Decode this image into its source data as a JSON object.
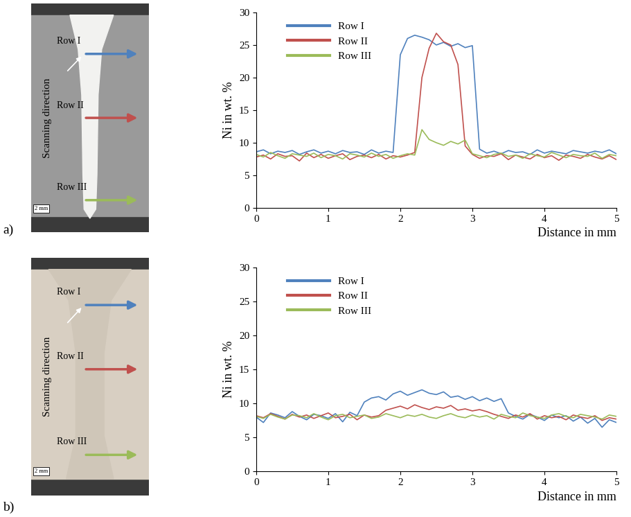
{
  "panel_labels": [
    "a)",
    "b)"
  ],
  "micrographs": [
    {
      "rows": [
        {
          "label": "Row I"
        },
        {
          "label": "Row II"
        },
        {
          "label": "Row III"
        }
      ],
      "annotation": "Scanning direction",
      "scale_bar": "2 mm"
    },
    {
      "rows": [
        {
          "label": "Row I"
        },
        {
          "label": "Row II"
        },
        {
          "label": "Row III"
        }
      ],
      "annotation": "Scanning direction",
      "scale_bar": "2 mm"
    }
  ],
  "chart_data": [
    {
      "type": "line",
      "x_label": "Distance in mm",
      "y_label": "Ni in wt. %",
      "xlim": [
        0,
        5
      ],
      "xticks": [
        0,
        1,
        2,
        3,
        4,
        5
      ],
      "ylim": [
        0,
        30
      ],
      "yticks": [
        0,
        5,
        10,
        15,
        20,
        25,
        30
      ],
      "legend": "upper left",
      "x": [
        0.0,
        0.1,
        0.2,
        0.3,
        0.4,
        0.5,
        0.6,
        0.7,
        0.8,
        0.9,
        1.0,
        1.1,
        1.2,
        1.3,
        1.4,
        1.5,
        1.6,
        1.7,
        1.8,
        1.9,
        2.0,
        2.1,
        2.2,
        2.3,
        2.4,
        2.5,
        2.6,
        2.7,
        2.8,
        2.9,
        3.0,
        3.1,
        3.2,
        3.3,
        3.4,
        3.5,
        3.6,
        3.7,
        3.8,
        3.9,
        4.0,
        4.1,
        4.2,
        4.3,
        4.4,
        4.5,
        4.6,
        4.7,
        4.8,
        4.9,
        5.0
      ],
      "series": [
        {
          "name": "Row I",
          "color": "#4f81bd",
          "values": [
            8.6,
            8.9,
            8.3,
            8.7,
            8.5,
            8.8,
            8.2,
            8.6,
            8.9,
            8.4,
            8.7,
            8.3,
            8.8,
            8.5,
            8.6,
            8.2,
            8.9,
            8.4,
            8.7,
            8.5,
            23.5,
            26.0,
            26.5,
            26.2,
            25.8,
            25.0,
            25.4,
            24.8,
            25.2,
            24.6,
            24.9,
            9.0,
            8.4,
            8.7,
            8.3,
            8.8,
            8.5,
            8.6,
            8.2,
            8.9,
            8.4,
            8.7,
            8.5,
            8.3,
            8.8,
            8.6,
            8.4,
            8.7,
            8.5,
            8.9,
            8.3
          ]
        },
        {
          "name": "Row II",
          "color": "#c0504d",
          "values": [
            7.8,
            8.1,
            7.5,
            8.3,
            7.9,
            8.0,
            7.2,
            8.4,
            7.7,
            8.2,
            7.6,
            8.0,
            8.3,
            7.4,
            7.9,
            8.1,
            7.7,
            8.2,
            7.5,
            8.0,
            7.8,
            8.1,
            8.5,
            20.0,
            24.5,
            26.8,
            25.5,
            25.0,
            22.0,
            9.5,
            8.2,
            7.6,
            8.0,
            7.9,
            8.3,
            7.4,
            8.1,
            7.8,
            7.5,
            8.2,
            7.7,
            8.0,
            7.3,
            8.1,
            7.9,
            7.6,
            8.2,
            7.8,
            7.5,
            8.0,
            7.4
          ]
        },
        {
          "name": "Row III",
          "color": "#9bbb59",
          "values": [
            8.2,
            7.8,
            8.5,
            8.0,
            7.6,
            8.3,
            8.1,
            7.9,
            8.4,
            7.7,
            8.2,
            8.0,
            7.5,
            8.3,
            8.1,
            7.8,
            8.4,
            7.9,
            8.2,
            7.6,
            8.0,
            8.3,
            8.1,
            12.0,
            10.5,
            10.0,
            9.6,
            10.2,
            9.8,
            10.4,
            8.3,
            8.0,
            7.7,
            8.2,
            8.4,
            7.9,
            8.1,
            7.6,
            8.3,
            8.0,
            7.8,
            8.5,
            8.1,
            7.7,
            8.2,
            8.0,
            7.9,
            8.4,
            7.6,
            8.2,
            8.0
          ]
        }
      ]
    },
    {
      "type": "line",
      "x_label": "Distance in mm",
      "y_label": "Ni in wt. %",
      "xlim": [
        0,
        5
      ],
      "xticks": [
        0,
        1,
        2,
        3,
        4,
        5
      ],
      "ylim": [
        0,
        30
      ],
      "yticks": [
        0,
        5,
        10,
        15,
        20,
        25,
        30
      ],
      "legend": "upper left",
      "x": [
        0.0,
        0.1,
        0.2,
        0.3,
        0.4,
        0.5,
        0.6,
        0.7,
        0.8,
        0.9,
        1.0,
        1.1,
        1.2,
        1.3,
        1.4,
        1.5,
        1.6,
        1.7,
        1.8,
        1.9,
        2.0,
        2.1,
        2.2,
        2.3,
        2.4,
        2.5,
        2.6,
        2.7,
        2.8,
        2.9,
        3.0,
        3.1,
        3.2,
        3.3,
        3.4,
        3.5,
        3.6,
        3.7,
        3.8,
        3.9,
        4.0,
        4.1,
        4.2,
        4.3,
        4.4,
        4.5,
        4.6,
        4.7,
        4.8,
        4.9,
        5.0
      ],
      "series": [
        {
          "name": "Row I",
          "color": "#4f81bd",
          "values": [
            8.0,
            7.2,
            8.6,
            8.3,
            7.9,
            8.8,
            8.1,
            7.6,
            8.4,
            8.2,
            7.8,
            8.5,
            7.3,
            8.7,
            8.2,
            10.2,
            10.8,
            11.0,
            10.5,
            11.4,
            11.8,
            11.2,
            11.6,
            12.0,
            11.5,
            11.3,
            11.7,
            10.9,
            11.1,
            10.6,
            11.0,
            10.4,
            10.8,
            10.3,
            10.7,
            8.6,
            8.1,
            7.7,
            8.4,
            8.0,
            7.5,
            8.3,
            7.9,
            8.2,
            7.4,
            8.0,
            7.1,
            7.8,
            6.5,
            7.6,
            7.2
          ]
        },
        {
          "name": "Row II",
          "color": "#c0504d",
          "values": [
            8.2,
            7.9,
            8.5,
            8.1,
            7.7,
            8.4,
            8.0,
            8.3,
            7.8,
            8.2,
            8.6,
            7.9,
            8.1,
            8.4,
            7.6,
            8.3,
            8.0,
            8.2,
            9.0,
            9.3,
            9.6,
            9.2,
            9.8,
            9.4,
            9.1,
            9.5,
            9.3,
            9.7,
            9.0,
            9.2,
            8.9,
            9.1,
            8.8,
            8.4,
            8.1,
            7.8,
            8.3,
            8.0,
            8.5,
            7.7,
            8.2,
            7.9,
            8.1,
            7.6,
            8.3,
            8.0,
            7.8,
            8.2,
            7.5,
            7.9,
            7.7
          ]
        },
        {
          "name": "Row III",
          "color": "#9bbb59",
          "values": [
            8.1,
            7.8,
            8.4,
            8.0,
            7.7,
            8.3,
            8.2,
            7.9,
            8.5,
            8.0,
            7.6,
            8.2,
            8.4,
            7.9,
            8.1,
            8.3,
            7.8,
            8.0,
            8.5,
            8.2,
            7.9,
            8.3,
            8.1,
            8.4,
            8.0,
            7.8,
            8.2,
            8.5,
            8.1,
            7.9,
            8.3,
            8.0,
            8.2,
            7.7,
            8.4,
            8.1,
            7.9,
            8.6,
            8.2,
            8.0,
            7.8,
            8.3,
            8.5,
            8.1,
            7.9,
            8.4,
            8.2,
            8.0,
            7.7,
            8.3,
            8.1
          ]
        }
      ]
    }
  ]
}
